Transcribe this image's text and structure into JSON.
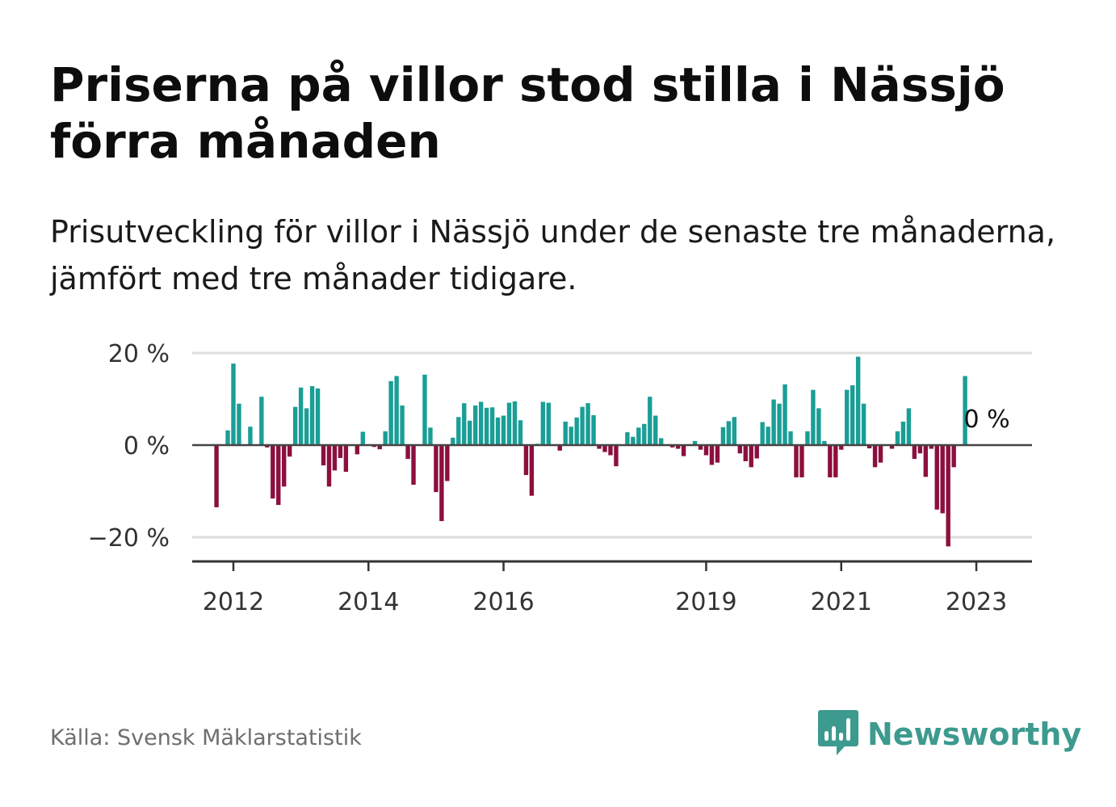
{
  "title": "Priserna på villor stod stilla i Nässjö förra månaden",
  "subtitle": "Prisutveckling för villor i Nässjö under de senaste tre månaderna, jämfört med tre månader tidigare.",
  "source": "Källa: Svensk Mäklarstatistik",
  "brand": {
    "name": "Newsworthy",
    "icon": "newsworthy-logo-icon"
  },
  "colors": {
    "positive": "#1a9e96",
    "negative": "#8c0f3e",
    "gridline": "#dddddd",
    "axis": "#333333"
  },
  "annotation": {
    "text": "0 %"
  },
  "chart_data": {
    "type": "bar",
    "start_month": "2011-10",
    "y_ticks": [
      20,
      0,
      -20
    ],
    "y_tick_labels": [
      "20 %",
      "0 %",
      "−20 %"
    ],
    "x_ticks": [
      {
        "date": "2012-01",
        "label": "2012"
      },
      {
        "date": "2014-01",
        "label": "2014"
      },
      {
        "date": "2016-01",
        "label": "2016"
      },
      {
        "date": "2019-01",
        "label": "2019"
      },
      {
        "date": "2021-01",
        "label": "2021"
      },
      {
        "date": "2023-01",
        "label": "2023"
      }
    ],
    "ylim": [
      -25,
      20
    ],
    "values": [
      -13.5,
      0,
      3.2,
      17.7,
      9.0,
      0,
      4.0,
      0,
      10.5,
      -0.5,
      -11.6,
      -13.0,
      -9.0,
      -2.5,
      8.3,
      12.5,
      8.0,
      12.8,
      12.3,
      -4.4,
      -9.0,
      -5.5,
      -2.8,
      -5.8,
      0,
      -2.0,
      2.9,
      0,
      -0.4,
      -0.9,
      3.0,
      13.9,
      15.0,
      8.6,
      -3.0,
      -8.6,
      0,
      15.3,
      3.8,
      -10.2,
      -16.5,
      -7.8,
      1.6,
      6.1,
      9.1,
      5.3,
      8.6,
      9.4,
      8.1,
      8.2,
      6.0,
      6.4,
      9.2,
      9.5,
      5.4,
      -6.5,
      -11.0,
      0.3,
      9.4,
      9.2,
      0,
      -1.2,
      5.1,
      4.0,
      6.0,
      8.3,
      9.1,
      6.5,
      -0.8,
      -1.5,
      -2.2,
      -4.6,
      0,
      2.8,
      1.8,
      3.8,
      4.6,
      10.5,
      6.4,
      1.5,
      0,
      -0.5,
      -0.8,
      -2.4,
      0,
      0.9,
      -1.0,
      -2.2,
      -4.3,
      -3.8,
      3.9,
      5.2,
      6.1,
      -1.8,
      -3.5,
      -4.8,
      -2.9,
      5.0,
      4.0,
      9.9,
      9.0,
      13.2,
      3.0,
      -7.0,
      -7.0,
      3.0,
      12.0,
      8.0,
      0.9,
      -7.0,
      -7.0,
      -1.0,
      12.0,
      13.0,
      19.2,
      9.0,
      -0.7,
      -4.8,
      -3.8,
      0,
      -0.8,
      3.0,
      5.1,
      8.0,
      -3.0,
      -1.8,
      -6.9,
      -0.8,
      -14.0,
      -14.8,
      -22.0,
      -4.8,
      0,
      15.0,
      0
    ]
  }
}
